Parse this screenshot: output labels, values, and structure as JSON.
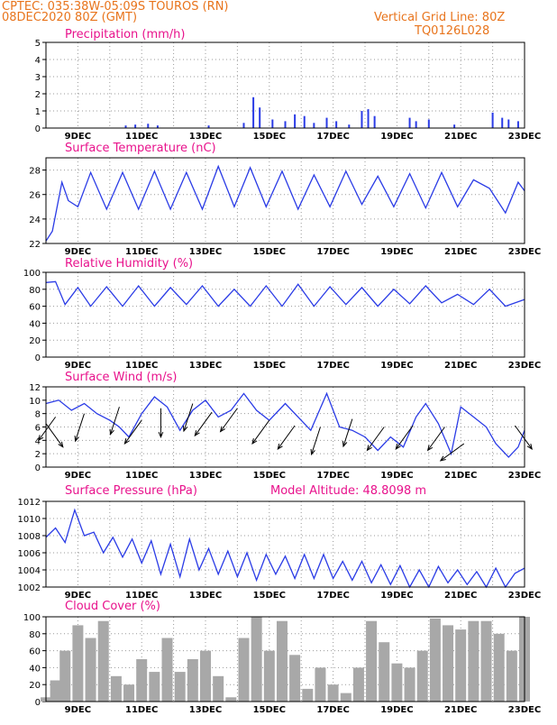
{
  "header": {
    "line1": "CPTEC:   035:38W-05:09S   TOUROS (RN)",
    "line2": "08DEC2020 80Z (GMT)",
    "grid_note": "Vertical Grid Line: 80Z",
    "model_code": "TQ0126L028"
  },
  "colors": {
    "header": "#e8741c",
    "titles": "#e8128c",
    "series": "#2a3be6",
    "cloud": "#a8a8a8",
    "wind_arrow": "#000000"
  },
  "x_ticks": [
    "9DEC",
    "11DEC",
    "13DEC",
    "15DEC",
    "17DEC",
    "19DEC",
    "21DEC",
    "23DEC"
  ],
  "chart_data": [
    {
      "type": "bar",
      "title": "Precipitation (mm/h)",
      "ylim": [
        0,
        5
      ],
      "yticks": [
        "0",
        "1",
        "2",
        "3",
        "4",
        "5"
      ],
      "x_range_days": [
        8.0,
        23.0
      ],
      "series": [
        {
          "values": [
            [
              10.5,
              0.15
            ],
            [
              10.8,
              0.2
            ],
            [
              11.2,
              0.25
            ],
            [
              11.5,
              0.15
            ],
            [
              13.1,
              0.15
            ],
            [
              14.2,
              0.3
            ],
            [
              14.5,
              1.8
            ],
            [
              14.7,
              1.2
            ],
            [
              15.1,
              0.5
            ],
            [
              15.5,
              0.4
            ],
            [
              15.8,
              0.8
            ],
            [
              16.1,
              0.7
            ],
            [
              16.4,
              0.3
            ],
            [
              16.8,
              0.6
            ],
            [
              17.1,
              0.4
            ],
            [
              17.5,
              0.2
            ],
            [
              17.9,
              1.0
            ],
            [
              18.1,
              1.1
            ],
            [
              18.3,
              0.7
            ],
            [
              19.4,
              0.6
            ],
            [
              19.6,
              0.4
            ],
            [
              20.0,
              0.5
            ],
            [
              20.8,
              0.2
            ],
            [
              22.0,
              0.9
            ],
            [
              22.3,
              0.6
            ],
            [
              22.5,
              0.5
            ],
            [
              22.8,
              0.4
            ]
          ]
        }
      ]
    },
    {
      "type": "line",
      "title": "Surface Temperature (nC)",
      "ylim": [
        22,
        29
      ],
      "yticks": [
        "22",
        "24",
        "26",
        "28"
      ],
      "series": [
        {
          "values": [
            [
              8.0,
              22.2
            ],
            [
              8.2,
              23.0
            ],
            [
              8.5,
              27.0
            ],
            [
              8.7,
              25.5
            ],
            [
              9.0,
              25.0
            ],
            [
              9.4,
              27.8
            ],
            [
              9.9,
              24.8
            ],
            [
              10.4,
              27.8
            ],
            [
              10.9,
              24.8
            ],
            [
              11.4,
              27.9
            ],
            [
              11.9,
              24.8
            ],
            [
              12.4,
              27.8
            ],
            [
              12.9,
              24.8
            ],
            [
              13.4,
              28.3
            ],
            [
              13.9,
              25.0
            ],
            [
              14.4,
              28.2
            ],
            [
              14.9,
              25.0
            ],
            [
              15.4,
              27.9
            ],
            [
              15.9,
              24.8
            ],
            [
              16.4,
              27.6
            ],
            [
              16.9,
              25.0
            ],
            [
              17.4,
              27.9
            ],
            [
              17.9,
              25.2
            ],
            [
              18.4,
              27.5
            ],
            [
              18.9,
              25.0
            ],
            [
              19.4,
              27.7
            ],
            [
              19.9,
              24.9
            ],
            [
              20.4,
              27.8
            ],
            [
              20.9,
              25.0
            ],
            [
              21.4,
              27.2
            ],
            [
              21.9,
              26.5
            ],
            [
              22.4,
              24.5
            ],
            [
              22.8,
              27.0
            ],
            [
              23.0,
              26.3
            ]
          ]
        }
      ]
    },
    {
      "type": "line",
      "title": "Relative Humidity (%)",
      "ylim": [
        0,
        100
      ],
      "yticks": [
        "0",
        "20",
        "40",
        "60",
        "80",
        "100"
      ],
      "series": [
        {
          "values": [
            [
              8.0,
              88
            ],
            [
              8.3,
              89
            ],
            [
              8.6,
              62
            ],
            [
              9.0,
              82
            ],
            [
              9.4,
              60
            ],
            [
              9.9,
              83
            ],
            [
              10.4,
              60
            ],
            [
              10.9,
              84
            ],
            [
              11.4,
              60
            ],
            [
              11.9,
              82
            ],
            [
              12.4,
              62
            ],
            [
              12.9,
              84
            ],
            [
              13.4,
              60
            ],
            [
              13.9,
              80
            ],
            [
              14.4,
              60
            ],
            [
              14.9,
              84
            ],
            [
              15.4,
              60
            ],
            [
              15.9,
              86
            ],
            [
              16.4,
              60
            ],
            [
              16.9,
              83
            ],
            [
              17.4,
              62
            ],
            [
              17.9,
              82
            ],
            [
              18.4,
              60
            ],
            [
              18.9,
              80
            ],
            [
              19.4,
              63
            ],
            [
              19.9,
              84
            ],
            [
              20.4,
              64
            ],
            [
              20.9,
              74
            ],
            [
              21.4,
              62
            ],
            [
              21.9,
              80
            ],
            [
              22.4,
              60
            ],
            [
              23.0,
              68
            ]
          ]
        }
      ]
    },
    {
      "type": "line",
      "title": "Surface Wind (m/s)",
      "ylim": [
        0,
        12
      ],
      "yticks": [
        "0",
        "2",
        "4",
        "6",
        "8",
        "10",
        "12"
      ],
      "series": [
        {
          "values": [
            [
              8.0,
              9.5
            ],
            [
              8.4,
              10.0
            ],
            [
              8.8,
              8.5
            ],
            [
              9.2,
              9.5
            ],
            [
              9.6,
              8.0
            ],
            [
              10.0,
              7.0
            ],
            [
              10.3,
              6.0
            ],
            [
              10.6,
              4.5
            ],
            [
              11.0,
              8.0
            ],
            [
              11.4,
              10.5
            ],
            [
              11.8,
              9.0
            ],
            [
              12.2,
              5.5
            ],
            [
              12.6,
              8.5
            ],
            [
              13.0,
              10.0
            ],
            [
              13.4,
              7.5
            ],
            [
              13.8,
              8.5
            ],
            [
              14.2,
              11.0
            ],
            [
              14.6,
              8.5
            ],
            [
              15.0,
              7.0
            ],
            [
              15.5,
              9.5
            ],
            [
              15.9,
              7.5
            ],
            [
              16.3,
              5.5
            ],
            [
              16.8,
              11.0
            ],
            [
              17.2,
              6.0
            ],
            [
              17.6,
              5.5
            ],
            [
              18.0,
              4.5
            ],
            [
              18.4,
              2.5
            ],
            [
              18.8,
              4.5
            ],
            [
              19.2,
              3.0
            ],
            [
              19.6,
              7.5
            ],
            [
              19.9,
              9.5
            ],
            [
              20.3,
              6.5
            ],
            [
              20.7,
              2.0
            ],
            [
              21.0,
              9.0
            ],
            [
              21.4,
              7.5
            ],
            [
              21.8,
              6.0
            ],
            [
              22.1,
              3.5
            ],
            [
              22.5,
              1.5
            ],
            [
              22.8,
              3.0
            ],
            [
              23.0,
              5.5
            ]
          ]
        }
      ]
    },
    {
      "type": "line",
      "title": "Surface Pressure (hPa)",
      "annotation": "Model Altitude: 48.8098 m",
      "ylim": [
        1002,
        1012
      ],
      "yticks": [
        "1002",
        "1004",
        "1006",
        "1008",
        "1010",
        "1012"
      ],
      "series": [
        {
          "values": [
            [
              8.0,
              1007.8
            ],
            [
              8.3,
              1008.9
            ],
            [
              8.6,
              1007.2
            ],
            [
              8.9,
              1011.0
            ],
            [
              9.2,
              1008.0
            ],
            [
              9.5,
              1008.4
            ],
            [
              9.8,
              1006.0
            ],
            [
              10.1,
              1007.8
            ],
            [
              10.4,
              1005.5
            ],
            [
              10.7,
              1007.6
            ],
            [
              11.0,
              1004.8
            ],
            [
              11.3,
              1007.4
            ],
            [
              11.6,
              1003.5
            ],
            [
              11.9,
              1007.0
            ],
            [
              12.2,
              1003.2
            ],
            [
              12.5,
              1007.6
            ],
            [
              12.8,
              1004.0
            ],
            [
              13.1,
              1006.5
            ],
            [
              13.4,
              1003.5
            ],
            [
              13.7,
              1006.2
            ],
            [
              14.0,
              1003.2
            ],
            [
              14.3,
              1006.0
            ],
            [
              14.6,
              1002.8
            ],
            [
              14.9,
              1005.8
            ],
            [
              15.2,
              1003.5
            ],
            [
              15.5,
              1005.6
            ],
            [
              15.8,
              1003.0
            ],
            [
              16.1,
              1005.8
            ],
            [
              16.4,
              1003.0
            ],
            [
              16.7,
              1005.8
            ],
            [
              17.0,
              1003.0
            ],
            [
              17.3,
              1005.0
            ],
            [
              17.6,
              1002.8
            ],
            [
              17.9,
              1005.0
            ],
            [
              18.2,
              1002.5
            ],
            [
              18.5,
              1004.6
            ],
            [
              18.8,
              1002.3
            ],
            [
              19.1,
              1004.5
            ],
            [
              19.4,
              1002.0
            ],
            [
              19.7,
              1004.0
            ],
            [
              20.0,
              1002.0
            ],
            [
              20.3,
              1004.4
            ],
            [
              20.6,
              1002.5
            ],
            [
              20.9,
              1004.0
            ],
            [
              21.2,
              1002.3
            ],
            [
              21.5,
              1003.8
            ],
            [
              21.8,
              1002.0
            ],
            [
              22.1,
              1004.2
            ],
            [
              22.4,
              1002.0
            ],
            [
              22.7,
              1003.6
            ],
            [
              23.0,
              1004.2
            ]
          ]
        }
      ]
    },
    {
      "type": "bar",
      "title": "Cloud Cover (%)",
      "ylim": [
        0,
        100
      ],
      "yticks": [
        "0",
        "20",
        "40",
        "60",
        "80",
        "100"
      ],
      "series": [
        {
          "values": [
            [
              8.0,
              5
            ],
            [
              8.3,
              25
            ],
            [
              8.6,
              60
            ],
            [
              9.0,
              90
            ],
            [
              9.4,
              75
            ],
            [
              9.8,
              95
            ],
            [
              10.2,
              30
            ],
            [
              10.6,
              20
            ],
            [
              11.0,
              50
            ],
            [
              11.4,
              35
            ],
            [
              11.8,
              75
            ],
            [
              12.2,
              35
            ],
            [
              12.6,
              50
            ],
            [
              13.0,
              60
            ],
            [
              13.4,
              30
            ],
            [
              13.8,
              5
            ],
            [
              14.2,
              75
            ],
            [
              14.6,
              100
            ],
            [
              15.0,
              60
            ],
            [
              15.4,
              95
            ],
            [
              15.8,
              55
            ],
            [
              16.2,
              15
            ],
            [
              16.6,
              40
            ],
            [
              17.0,
              20
            ],
            [
              17.4,
              10
            ],
            [
              17.8,
              40
            ],
            [
              18.2,
              95
            ],
            [
              18.6,
              70
            ],
            [
              19.0,
              45
            ],
            [
              19.4,
              40
            ],
            [
              19.8,
              60
            ],
            [
              20.2,
              98
            ],
            [
              20.6,
              90
            ],
            [
              21.0,
              85
            ],
            [
              21.4,
              95
            ],
            [
              21.8,
              95
            ],
            [
              22.2,
              80
            ],
            [
              22.6,
              60
            ],
            [
              23.0,
              100
            ]
          ]
        }
      ]
    }
  ],
  "wind_vectors": [
    [
      8.0,
      6.5,
      -0.3
    ],
    [
      8.3,
      7.5,
      -0.7
    ],
    [
      9.2,
      8.0,
      -0.6
    ],
    [
      10.3,
      9.0,
      -0.6
    ],
    [
      11.0,
      7.0,
      -0.7
    ],
    [
      11.6,
      8.8,
      -0.5
    ],
    [
      12.6,
      9.5,
      -0.6
    ],
    [
      13.2,
      8.2,
      -0.7
    ],
    [
      14.0,
      8.8,
      -0.7
    ],
    [
      15.0,
      7.0,
      -0.7
    ],
    [
      15.8,
      6.2,
      -0.7
    ],
    [
      16.6,
      6.0,
      -0.6
    ],
    [
      17.6,
      7.2,
      -0.6
    ],
    [
      18.6,
      6.0,
      -0.7
    ],
    [
      19.5,
      6.2,
      -0.7
    ],
    [
      20.5,
      6.0,
      -0.7
    ],
    [
      21.1,
      3.5,
      -0.8
    ],
    [
      22.7,
      6.2,
      -0.3
    ]
  ]
}
